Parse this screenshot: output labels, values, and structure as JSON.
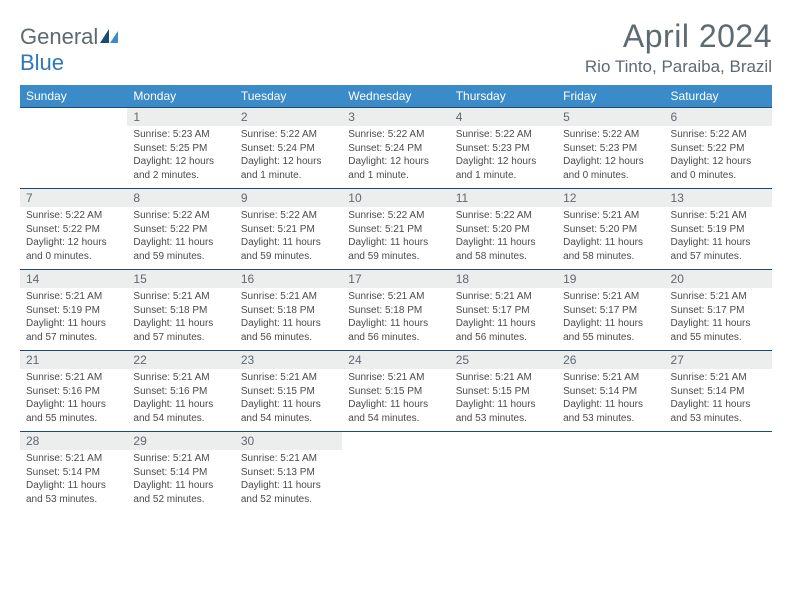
{
  "logo": {
    "text1": "General",
    "text2": "Blue"
  },
  "title": "April 2024",
  "location": "Rio Tinto, Paraiba, Brazil",
  "dow": [
    "Sunday",
    "Monday",
    "Tuesday",
    "Wednesday",
    "Thursday",
    "Friday",
    "Saturday"
  ],
  "colors": {
    "header_bg": "#3b8bc9",
    "daynum_bg": "#eceded",
    "rule": "#1b4a74",
    "text_muted": "#5e6a72",
    "logo_blue": "#2f78b8"
  },
  "weeks": [
    {
      "nums": [
        "",
        "1",
        "2",
        "3",
        "4",
        "5",
        "6"
      ],
      "details": [
        {
          "empty": true
        },
        {
          "sunrise": "Sunrise: 5:23 AM",
          "sunset": "Sunset: 5:25 PM",
          "day1": "Daylight: 12 hours",
          "day2": "and 2 minutes."
        },
        {
          "sunrise": "Sunrise: 5:22 AM",
          "sunset": "Sunset: 5:24 PM",
          "day1": "Daylight: 12 hours",
          "day2": "and 1 minute."
        },
        {
          "sunrise": "Sunrise: 5:22 AM",
          "sunset": "Sunset: 5:24 PM",
          "day1": "Daylight: 12 hours",
          "day2": "and 1 minute."
        },
        {
          "sunrise": "Sunrise: 5:22 AM",
          "sunset": "Sunset: 5:23 PM",
          "day1": "Daylight: 12 hours",
          "day2": "and 1 minute."
        },
        {
          "sunrise": "Sunrise: 5:22 AM",
          "sunset": "Sunset: 5:23 PM",
          "day1": "Daylight: 12 hours",
          "day2": "and 0 minutes."
        },
        {
          "sunrise": "Sunrise: 5:22 AM",
          "sunset": "Sunset: 5:22 PM",
          "day1": "Daylight: 12 hours",
          "day2": "and 0 minutes."
        }
      ]
    },
    {
      "nums": [
        "7",
        "8",
        "9",
        "10",
        "11",
        "12",
        "13"
      ],
      "details": [
        {
          "sunrise": "Sunrise: 5:22 AM",
          "sunset": "Sunset: 5:22 PM",
          "day1": "Daylight: 12 hours",
          "day2": "and 0 minutes."
        },
        {
          "sunrise": "Sunrise: 5:22 AM",
          "sunset": "Sunset: 5:22 PM",
          "day1": "Daylight: 11 hours",
          "day2": "and 59 minutes."
        },
        {
          "sunrise": "Sunrise: 5:22 AM",
          "sunset": "Sunset: 5:21 PM",
          "day1": "Daylight: 11 hours",
          "day2": "and 59 minutes."
        },
        {
          "sunrise": "Sunrise: 5:22 AM",
          "sunset": "Sunset: 5:21 PM",
          "day1": "Daylight: 11 hours",
          "day2": "and 59 minutes."
        },
        {
          "sunrise": "Sunrise: 5:22 AM",
          "sunset": "Sunset: 5:20 PM",
          "day1": "Daylight: 11 hours",
          "day2": "and 58 minutes."
        },
        {
          "sunrise": "Sunrise: 5:21 AM",
          "sunset": "Sunset: 5:20 PM",
          "day1": "Daylight: 11 hours",
          "day2": "and 58 minutes."
        },
        {
          "sunrise": "Sunrise: 5:21 AM",
          "sunset": "Sunset: 5:19 PM",
          "day1": "Daylight: 11 hours",
          "day2": "and 57 minutes."
        }
      ]
    },
    {
      "nums": [
        "14",
        "15",
        "16",
        "17",
        "18",
        "19",
        "20"
      ],
      "details": [
        {
          "sunrise": "Sunrise: 5:21 AM",
          "sunset": "Sunset: 5:19 PM",
          "day1": "Daylight: 11 hours",
          "day2": "and 57 minutes."
        },
        {
          "sunrise": "Sunrise: 5:21 AM",
          "sunset": "Sunset: 5:18 PM",
          "day1": "Daylight: 11 hours",
          "day2": "and 57 minutes."
        },
        {
          "sunrise": "Sunrise: 5:21 AM",
          "sunset": "Sunset: 5:18 PM",
          "day1": "Daylight: 11 hours",
          "day2": "and 56 minutes."
        },
        {
          "sunrise": "Sunrise: 5:21 AM",
          "sunset": "Sunset: 5:18 PM",
          "day1": "Daylight: 11 hours",
          "day2": "and 56 minutes."
        },
        {
          "sunrise": "Sunrise: 5:21 AM",
          "sunset": "Sunset: 5:17 PM",
          "day1": "Daylight: 11 hours",
          "day2": "and 56 minutes."
        },
        {
          "sunrise": "Sunrise: 5:21 AM",
          "sunset": "Sunset: 5:17 PM",
          "day1": "Daylight: 11 hours",
          "day2": "and 55 minutes."
        },
        {
          "sunrise": "Sunrise: 5:21 AM",
          "sunset": "Sunset: 5:17 PM",
          "day1": "Daylight: 11 hours",
          "day2": "and 55 minutes."
        }
      ]
    },
    {
      "nums": [
        "21",
        "22",
        "23",
        "24",
        "25",
        "26",
        "27"
      ],
      "details": [
        {
          "sunrise": "Sunrise: 5:21 AM",
          "sunset": "Sunset: 5:16 PM",
          "day1": "Daylight: 11 hours",
          "day2": "and 55 minutes."
        },
        {
          "sunrise": "Sunrise: 5:21 AM",
          "sunset": "Sunset: 5:16 PM",
          "day1": "Daylight: 11 hours",
          "day2": "and 54 minutes."
        },
        {
          "sunrise": "Sunrise: 5:21 AM",
          "sunset": "Sunset: 5:15 PM",
          "day1": "Daylight: 11 hours",
          "day2": "and 54 minutes."
        },
        {
          "sunrise": "Sunrise: 5:21 AM",
          "sunset": "Sunset: 5:15 PM",
          "day1": "Daylight: 11 hours",
          "day2": "and 54 minutes."
        },
        {
          "sunrise": "Sunrise: 5:21 AM",
          "sunset": "Sunset: 5:15 PM",
          "day1": "Daylight: 11 hours",
          "day2": "and 53 minutes."
        },
        {
          "sunrise": "Sunrise: 5:21 AM",
          "sunset": "Sunset: 5:14 PM",
          "day1": "Daylight: 11 hours",
          "day2": "and 53 minutes."
        },
        {
          "sunrise": "Sunrise: 5:21 AM",
          "sunset": "Sunset: 5:14 PM",
          "day1": "Daylight: 11 hours",
          "day2": "and 53 minutes."
        }
      ]
    },
    {
      "nums": [
        "28",
        "29",
        "30",
        "",
        "",
        "",
        ""
      ],
      "details": [
        {
          "sunrise": "Sunrise: 5:21 AM",
          "sunset": "Sunset: 5:14 PM",
          "day1": "Daylight: 11 hours",
          "day2": "and 53 minutes."
        },
        {
          "sunrise": "Sunrise: 5:21 AM",
          "sunset": "Sunset: 5:14 PM",
          "day1": "Daylight: 11 hours",
          "day2": "and 52 minutes."
        },
        {
          "sunrise": "Sunrise: 5:21 AM",
          "sunset": "Sunset: 5:13 PM",
          "day1": "Daylight: 11 hours",
          "day2": "and 52 minutes."
        },
        {
          "empty": true
        },
        {
          "empty": true
        },
        {
          "empty": true
        },
        {
          "empty": true
        }
      ]
    }
  ]
}
